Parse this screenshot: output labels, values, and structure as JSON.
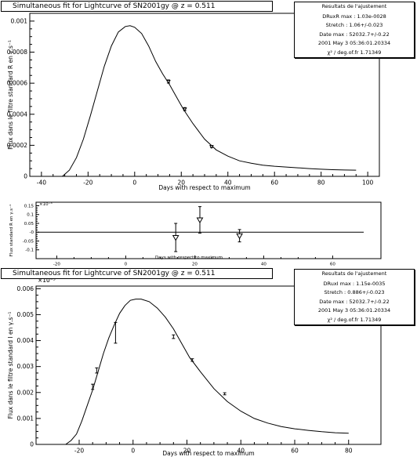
{
  "panels": [
    {
      "title": "Simultaneous fit for Lightcurve of SN2001gy @ z = 0.511",
      "stats": {
        "header": "Resultats de l'ajustement",
        "lines": [
          "DRuxR  max : 1.03e-0028",
          "Stretch : 1.06+/-0.023",
          "Date max : 52032.7+/-0.22",
          "2001 May 3 05:36:01.20334",
          "χ² / deg.of.fr 1.71349"
        ]
      }
    },
    {
      "title": "",
      "stats": null
    },
    {
      "title": "Simultaneous fit for Lightcurve of SN2001gy @ z = 0.511",
      "stats": {
        "header": "Resultats de l'ajustement",
        "lines": [
          "DRuxI  max : 1.15e-0035",
          "Stretch : 0.886+/-0.023",
          "Date max : 52032.7+/-0.22",
          "2001 May 3 05:36:01.20334",
          "χ² / deg.of.fr 1.71349"
        ]
      }
    }
  ],
  "chart_data": [
    {
      "type": "line",
      "title": "Simultaneous fit for Lightcurve of SN2001gy @ z = 0.511",
      "xlabel": "Days with respect to maximum",
      "ylabel": "Flux dans le filtre standard R en  γ.s⁻¹",
      "xlim": [
        -45,
        105
      ],
      "ylim": [
        0,
        0.00105
      ],
      "xticks": [
        "-40",
        "-20",
        "0",
        "20",
        "40",
        "60",
        "80",
        "100"
      ],
      "xtick_values": [
        -40,
        -20,
        0,
        20,
        40,
        60,
        80,
        100
      ],
      "yticks": [
        "0",
        "0.0002",
        "0.0004",
        "0.0006",
        "0.0008",
        "0.001"
      ],
      "ytick_values": [
        0,
        0.0002,
        0.0004,
        0.0006,
        0.0008,
        0.001
      ],
      "curve": {
        "x": [
          -31,
          -28,
          -25,
          -22,
          -19,
          -16,
          -13,
          -10,
          -7,
          -4,
          -2,
          0,
          3,
          6,
          9,
          12,
          15,
          18,
          21,
          25,
          30,
          35,
          40,
          45,
          50,
          55,
          60,
          65,
          70,
          75,
          80,
          85,
          90,
          95
        ],
        "y": [
          0,
          4e-05,
          0.00012,
          0.00024,
          0.00039,
          0.00055,
          0.00071,
          0.00084,
          0.00093,
          0.000965,
          0.00097,
          0.00096,
          0.00092,
          0.00084,
          0.00074,
          0.00066,
          0.00059,
          0.00051,
          0.00043,
          0.00034,
          0.00024,
          0.00017,
          0.00013,
          0.0001,
          8.5e-05,
          7.2e-05,
          6.5e-05,
          6e-05,
          5.5e-05,
          5e-05,
          4.6e-05,
          4.3e-05,
          4.1e-05,
          4e-05
        ]
      },
      "points": [
        {
          "x": 14.5,
          "y": 0.000611,
          "err": 1e-05
        },
        {
          "x": 21.5,
          "y": 0.000433,
          "err": 1e-05
        },
        {
          "x": 33,
          "y": 0.000192,
          "err": 6e-06
        }
      ]
    },
    {
      "type": "scatter",
      "title": "",
      "xlabel": "Days with respect to maximum",
      "ylabel": "Flux  standard R en  γ.s⁻¹",
      "exponent_label": "×10⁻³",
      "xlim": [
        -26,
        74
      ],
      "ylim": [
        -0.15,
        0.17
      ],
      "xticks": [
        "-20",
        "0",
        "20",
        "40",
        "60"
      ],
      "xtick_values": [
        -20,
        0,
        20,
        40,
        60
      ],
      "yticks": [
        "-0.1",
        "-0.05",
        "-0",
        "0.05",
        "0.1",
        "0.15"
      ],
      "ytick_values": [
        -0.1,
        -0.05,
        0,
        0.05,
        0.1,
        0.15
      ],
      "baseline": {
        "x": [
          -26,
          69
        ],
        "y": 0
      },
      "points": [
        {
          "x": 14.5,
          "y": -0.03,
          "err": 0.08
        },
        {
          "x": 21.5,
          "y": 0.07,
          "err": 0.075
        },
        {
          "x": 33,
          "y": -0.02,
          "err": 0.035
        }
      ]
    },
    {
      "type": "line",
      "title": "Simultaneous fit for Lightcurve of SN2001gy @ z = 0.511",
      "xlabel": "Days with respect to maximum",
      "ylabel": "Flux dans le filtre standard I en  γ.s⁻¹",
      "exponent_label": "×10⁻³",
      "xlim": [
        -36,
        92
      ],
      "ylim": [
        0,
        0.0061
      ],
      "xticks": [
        "-20",
        "0",
        "20",
        "40",
        "60",
        "80"
      ],
      "xtick_values": [
        -20,
        0,
        20,
        40,
        60,
        80
      ],
      "yticks": [
        "0",
        "0.001",
        "0.002",
        "0.003",
        "0.004",
        "0.005",
        "0.006"
      ],
      "ytick_values": [
        0,
        0.001,
        0.002,
        0.003,
        0.004,
        0.005,
        0.006
      ],
      "curve": {
        "x": [
          -25,
          -23,
          -21,
          -19,
          -17,
          -15,
          -13,
          -11,
          -9,
          -7,
          -5,
          -3,
          -1,
          1,
          3,
          6,
          9,
          12,
          15,
          18,
          21,
          25,
          30,
          35,
          40,
          45,
          50,
          55,
          60,
          65,
          70,
          75,
          80
        ],
        "y": [
          0,
          0.00015,
          0.0004,
          0.0009,
          0.0015,
          0.0021,
          0.0028,
          0.0035,
          0.0041,
          0.0046,
          0.00505,
          0.00535,
          0.00555,
          0.0056,
          0.0056,
          0.0055,
          0.00525,
          0.0049,
          0.00445,
          0.0039,
          0.00335,
          0.0028,
          0.00215,
          0.00165,
          0.00128,
          0.001,
          0.00082,
          0.00069,
          0.0006,
          0.00054,
          0.00049,
          0.00045,
          0.00043
        ]
      },
      "points": [
        {
          "x": -15,
          "y": 0.00222,
          "err": 0.0001
        },
        {
          "x": -13.5,
          "y": 0.00285,
          "err": 0.0001
        },
        {
          "x": -6.5,
          "y": 0.0043,
          "err": 0.0004
        },
        {
          "x": 15,
          "y": 0.00415,
          "err": 7e-05
        },
        {
          "x": 22,
          "y": 0.00325,
          "err": 5e-05
        },
        {
          "x": 34,
          "y": 0.00195,
          "err": 4e-05
        }
      ]
    }
  ]
}
